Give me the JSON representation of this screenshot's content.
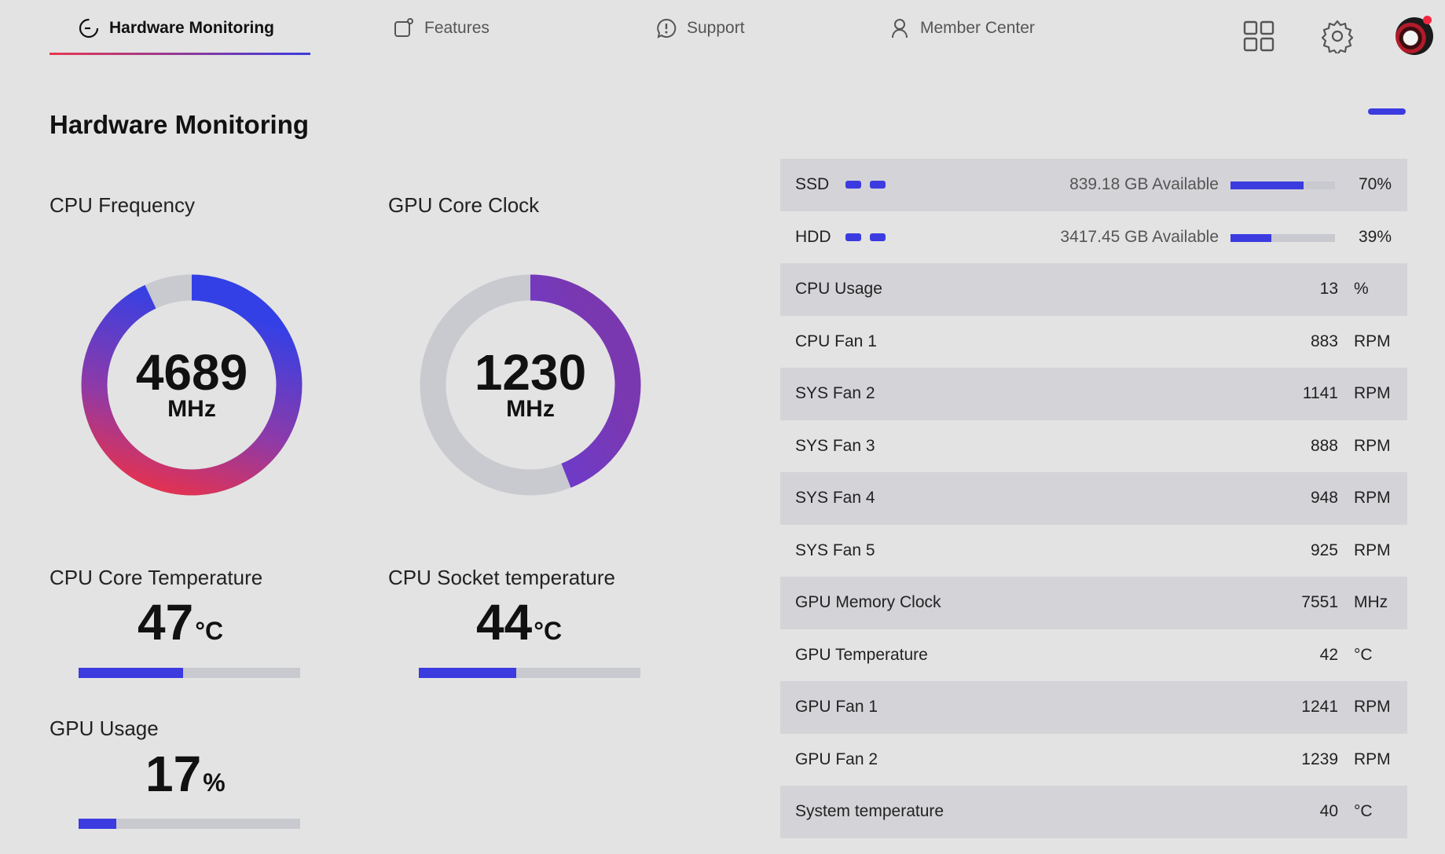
{
  "nav": {
    "tabs": [
      {
        "label": "Hardware Monitoring",
        "icon": "monitor-gauge-icon",
        "active": true
      },
      {
        "label": "Features",
        "icon": "features-icon"
      },
      {
        "label": "Support",
        "icon": "support-chat-icon"
      },
      {
        "label": "Member Center",
        "icon": "user-icon"
      }
    ],
    "icons": [
      "grid-icon",
      "gear-icon",
      "avatar"
    ]
  },
  "page": {
    "title": "Hardware Monitoring"
  },
  "gauges": {
    "cpu_freq": {
      "label": "CPU Frequency",
      "value": "4689",
      "unit": "MHz",
      "fraction": 0.93
    },
    "gpu_clock": {
      "label": "GPU Core Clock",
      "value": "1230",
      "unit": "MHz",
      "fraction": 0.44
    }
  },
  "temps": {
    "cpu_core": {
      "label": "CPU Core Temperature",
      "value": "47",
      "unit": "°C",
      "fraction": 0.47
    },
    "cpu_socket": {
      "label": "CPU Socket temperature",
      "value": "44",
      "unit": "°C",
      "fraction": 0.44
    },
    "gpu_usage": {
      "label": "GPU Usage",
      "value": "17",
      "unit": "%",
      "fraction": 0.17
    }
  },
  "storage": [
    {
      "name": "SSD",
      "available": "839.18 GB Available",
      "percent": "70%",
      "fraction": 0.7
    },
    {
      "name": "HDD",
      "available": "3417.45 GB Available",
      "percent": "39%",
      "fraction": 0.39
    }
  ],
  "sensors": [
    {
      "name": "CPU Usage",
      "value": "13",
      "unit": "%"
    },
    {
      "name": "CPU Fan 1",
      "value": "883",
      "unit": "RPM"
    },
    {
      "name": "SYS Fan 2",
      "value": "1141",
      "unit": "RPM"
    },
    {
      "name": "SYS Fan 3",
      "value": "888",
      "unit": "RPM"
    },
    {
      "name": "SYS Fan 4",
      "value": "948",
      "unit": "RPM"
    },
    {
      "name": "SYS Fan 5",
      "value": "925",
      "unit": "RPM"
    },
    {
      "name": "GPU Memory Clock",
      "value": "7551",
      "unit": "MHz"
    },
    {
      "name": "GPU Temperature",
      "value": "42",
      "unit": "°C"
    },
    {
      "name": "GPU Fan 1",
      "value": "1241",
      "unit": "RPM"
    },
    {
      "name": "GPU Fan 2",
      "value": "1239",
      "unit": "RPM"
    },
    {
      "name": "System temperature",
      "value": "40",
      "unit": "°C"
    }
  ],
  "colors": {
    "accent": "#3b3be0",
    "accent_red": "#e8384f",
    "track": "#c9c9d0",
    "row_shade": "#d4d4d8"
  }
}
